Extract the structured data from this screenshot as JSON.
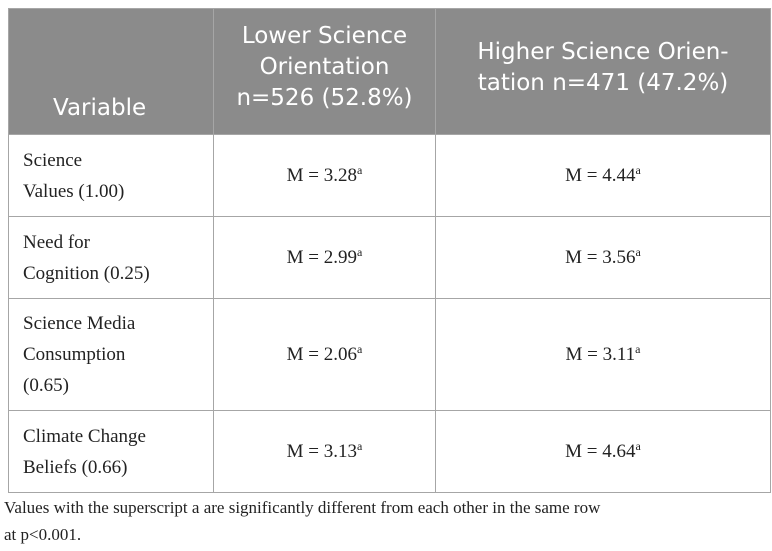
{
  "table": {
    "header": [
      [
        "Variable"
      ],
      [
        "Lower Science",
        "Orientation",
        "n=526 (52.8%)"
      ],
      [
        "Higher Science Orien-",
        "tation n=471 (47.2%)"
      ]
    ],
    "rows": [
      {
        "label": [
          "Science",
          "Values (1.00)"
        ],
        "cells": [
          {
            "text": "M = 3.28",
            "sup": "a"
          },
          {
            "text": "M = 4.44",
            "sup": "a"
          }
        ]
      },
      {
        "label": [
          "Need for",
          "Cognition (0.25)"
        ],
        "cells": [
          {
            "text": "M = 2.99",
            "sup": "a"
          },
          {
            "text": "M = 3.56",
            "sup": "a"
          }
        ]
      },
      {
        "label": [
          "Science Media",
          "Consumption",
          "(0.65)"
        ],
        "cells": [
          {
            "text": "M = 2.06",
            "sup": "a"
          },
          {
            "text": "M = 3.11",
            "sup": "a"
          }
        ]
      },
      {
        "label": [
          "Climate Change",
          "Beliefs (0.66)"
        ],
        "cells": [
          {
            "text": "M = 3.13",
            "sup": "a"
          },
          {
            "text": "M = 4.64",
            "sup": "a"
          }
        ]
      }
    ],
    "footnote": [
      "Values with the superscript a are significantly different from each other in the same row",
      "at p<0.001."
    ]
  }
}
